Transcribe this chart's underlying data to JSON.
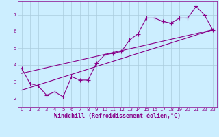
{
  "xlabel": "Windchill (Refroidissement éolien,°C)",
  "bg_color": "#cceeff",
  "line_color": "#880088",
  "grid_color": "#aaccdd",
  "x_ticks": [
    0,
    1,
    2,
    3,
    4,
    5,
    6,
    7,
    8,
    9,
    10,
    11,
    12,
    13,
    14,
    15,
    16,
    17,
    18,
    19,
    20,
    21,
    22,
    23
  ],
  "y_ticks": [
    2,
    3,
    4,
    5,
    6,
    7
  ],
  "ylim": [
    1.5,
    7.8
  ],
  "xlim": [
    -0.5,
    23.5
  ],
  "series1_x": [
    0,
    1,
    2,
    3,
    4,
    5,
    6,
    7,
    8,
    9,
    10,
    11,
    12,
    13,
    14,
    15,
    16,
    17,
    18,
    19,
    20,
    21,
    22,
    23
  ],
  "series1_y": [
    3.8,
    2.9,
    2.75,
    2.2,
    2.4,
    2.1,
    3.3,
    3.1,
    3.1,
    4.1,
    4.6,
    4.7,
    4.8,
    5.5,
    5.85,
    6.8,
    6.8,
    6.6,
    6.5,
    6.8,
    6.8,
    7.5,
    7.0,
    6.1
  ],
  "series2_x": [
    0,
    23
  ],
  "series2_y": [
    2.5,
    6.1
  ],
  "series3_x": [
    0,
    23
  ],
  "series3_y": [
    3.5,
    6.1
  ],
  "marker": "+",
  "markersize": 4,
  "linewidth": 0.8,
  "tick_fontsize": 5.0,
  "xlabel_fontsize": 6.0
}
